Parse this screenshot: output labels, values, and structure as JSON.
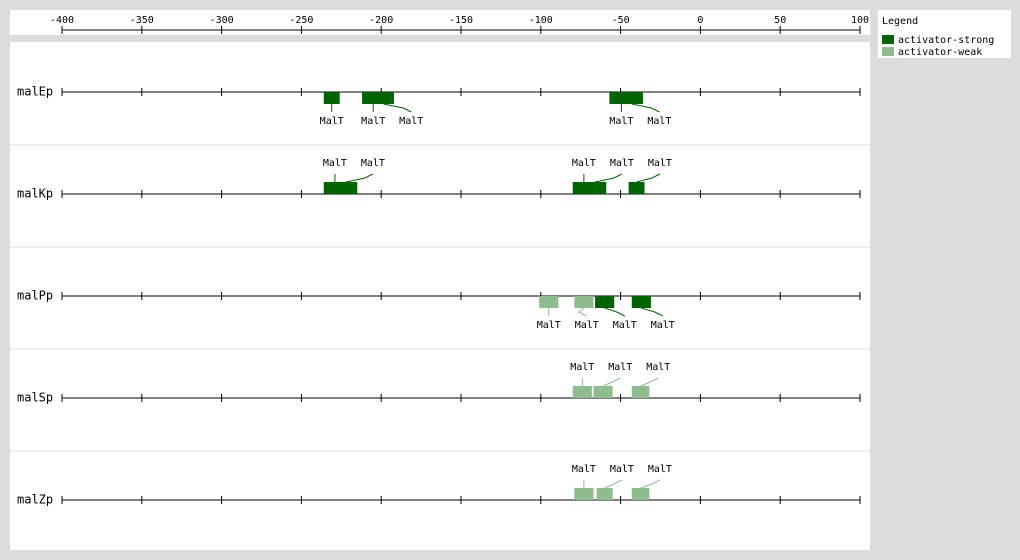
{
  "axis": {
    "xlim": [
      -400,
      100
    ],
    "xticks": [
      -400,
      -350,
      -300,
      -250,
      -200,
      -150,
      -100,
      -50,
      0,
      50,
      100
    ]
  },
  "legend": {
    "title": "Legend",
    "entries": [
      {
        "name": "activator-strong",
        "color": "#006400"
      },
      {
        "name": "activator-weak",
        "color": "#8fbc8f"
      }
    ]
  },
  "tracks": [
    {
      "name": "malEp",
      "sites": [
        {
          "start": -236,
          "end": -226,
          "type": "activator-strong",
          "label": "MalT"
        },
        {
          "start": -212,
          "end": -198,
          "type": "activator-strong",
          "label": "MalT"
        },
        {
          "start": -205,
          "end": -192,
          "type": "activator-strong",
          "label": "MalT"
        },
        {
          "start": -57,
          "end": -42,
          "type": "activator-strong",
          "label": "MalT"
        },
        {
          "start": -50,
          "end": -36,
          "type": "activator-strong",
          "label": "MalT"
        }
      ]
    },
    {
      "name": "malKp",
      "sites": [
        {
          "start": -236,
          "end": -222,
          "type": "activator-strong",
          "label": "MalT"
        },
        {
          "start": -229,
          "end": -215,
          "type": "activator-strong",
          "label": "MalT"
        },
        {
          "start": -80,
          "end": -66,
          "type": "activator-strong",
          "label": "MalT"
        },
        {
          "start": -73,
          "end": -59,
          "type": "activator-strong",
          "label": "MalT"
        },
        {
          "start": -45,
          "end": -35,
          "type": "activator-strong",
          "label": "MalT"
        }
      ]
    },
    {
      "name": "malPp",
      "sites": [
        {
          "start": -101,
          "end": -89,
          "type": "activator-weak",
          "label": "MalT"
        },
        {
          "start": -79,
          "end": -67,
          "type": "activator-weak",
          "label": "MalT"
        },
        {
          "start": -66,
          "end": -54,
          "type": "activator-strong",
          "label": "MalT"
        },
        {
          "start": -43,
          "end": -31,
          "type": "activator-strong",
          "label": "MalT"
        }
      ]
    },
    {
      "name": "malSp",
      "sites": [
        {
          "start": -80,
          "end": -68,
          "type": "activator-weak",
          "label": "MalT"
        },
        {
          "start": -67,
          "end": -55,
          "type": "activator-weak",
          "label": "MalT"
        },
        {
          "start": -43,
          "end": -32,
          "type": "activator-weak",
          "label": "MalT"
        }
      ]
    },
    {
      "name": "malZp",
      "sites": [
        {
          "start": -79,
          "end": -67,
          "type": "activator-weak",
          "label": "MalT"
        },
        {
          "start": -65,
          "end": -55,
          "type": "activator-weak",
          "label": "MalT"
        },
        {
          "start": -43,
          "end": -32,
          "type": "activator-weak",
          "label": "MalT"
        }
      ]
    }
  ]
}
